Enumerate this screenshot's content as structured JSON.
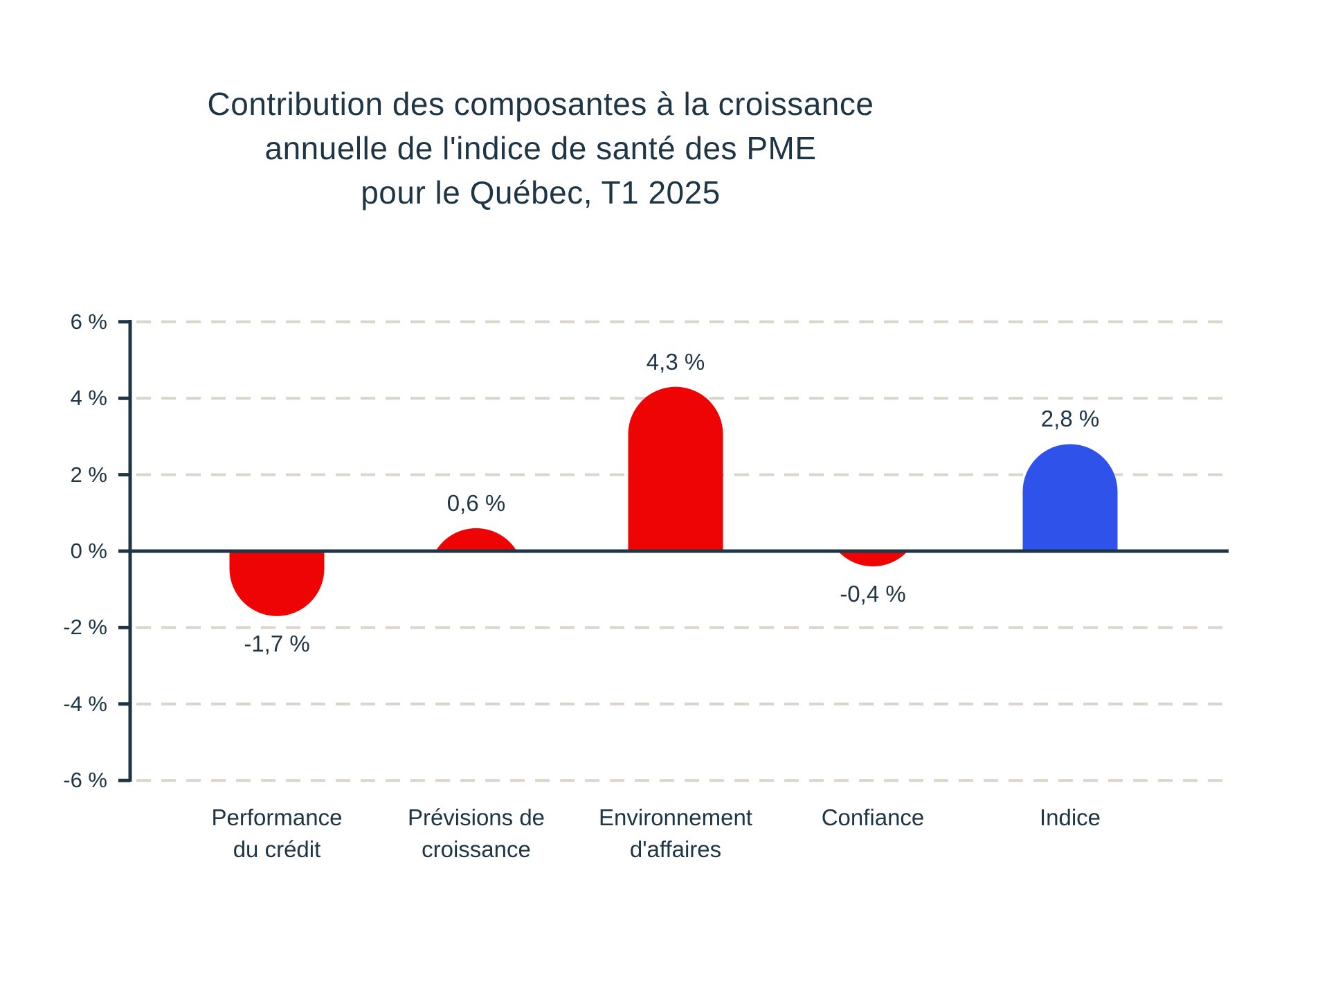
{
  "header": {
    "lines": [
      "Contribution des composantes à la croissance",
      "annuelle de l'indice de santé des PME",
      "pour le Québec, T1 2025"
    ]
  },
  "colors": {
    "navy": "#1d3544",
    "red": "#ee0404",
    "blue": "#2f52eb",
    "gridline": "#dbd4ca",
    "background": "#ffffff"
  },
  "chart_data": {
    "type": "bar",
    "title": "Contribution des composantes à la croissance annuelle de l'indice de santé des PME pour le Québec, T1 2025",
    "categories": [
      "Performance du crédit",
      "Prévisions de croissance",
      "Environnement d'affaires",
      "Confiance",
      "Indice"
    ],
    "category_lines": [
      [
        "Performance",
        "du crédit"
      ],
      [
        "Prévisions de",
        "croissance"
      ],
      [
        "Environnement",
        "d'affaires"
      ],
      [
        "Confiance"
      ],
      [
        "Indice"
      ]
    ],
    "values": [
      -1.7,
      0.6,
      4.3,
      -0.4,
      2.8
    ],
    "labels": [
      "-1,7 %",
      "0,6 %",
      "4,3 %",
      "-0,4 %",
      "2,8 %"
    ],
    "bar_colors": [
      "#ee0404",
      "#ee0404",
      "#ee0404",
      "#ee0404",
      "#2f52eb"
    ],
    "bar_style": "rounded-end",
    "xlabel": "",
    "ylabel": "",
    "ylim": [
      -6,
      6
    ],
    "yticks": [
      {
        "value": 6,
        "label": "6 %"
      },
      {
        "value": 4,
        "label": "4 %"
      },
      {
        "value": 2,
        "label": "2 %"
      },
      {
        "value": 0,
        "label": "0 %"
      },
      {
        "value": -2,
        "label": "-2 %"
      },
      {
        "value": -4,
        "label": "-4 %"
      },
      {
        "value": -6,
        "label": "-6 %"
      }
    ],
    "grid": "dashed-horizontal",
    "zero_line": true,
    "legend": "none"
  }
}
